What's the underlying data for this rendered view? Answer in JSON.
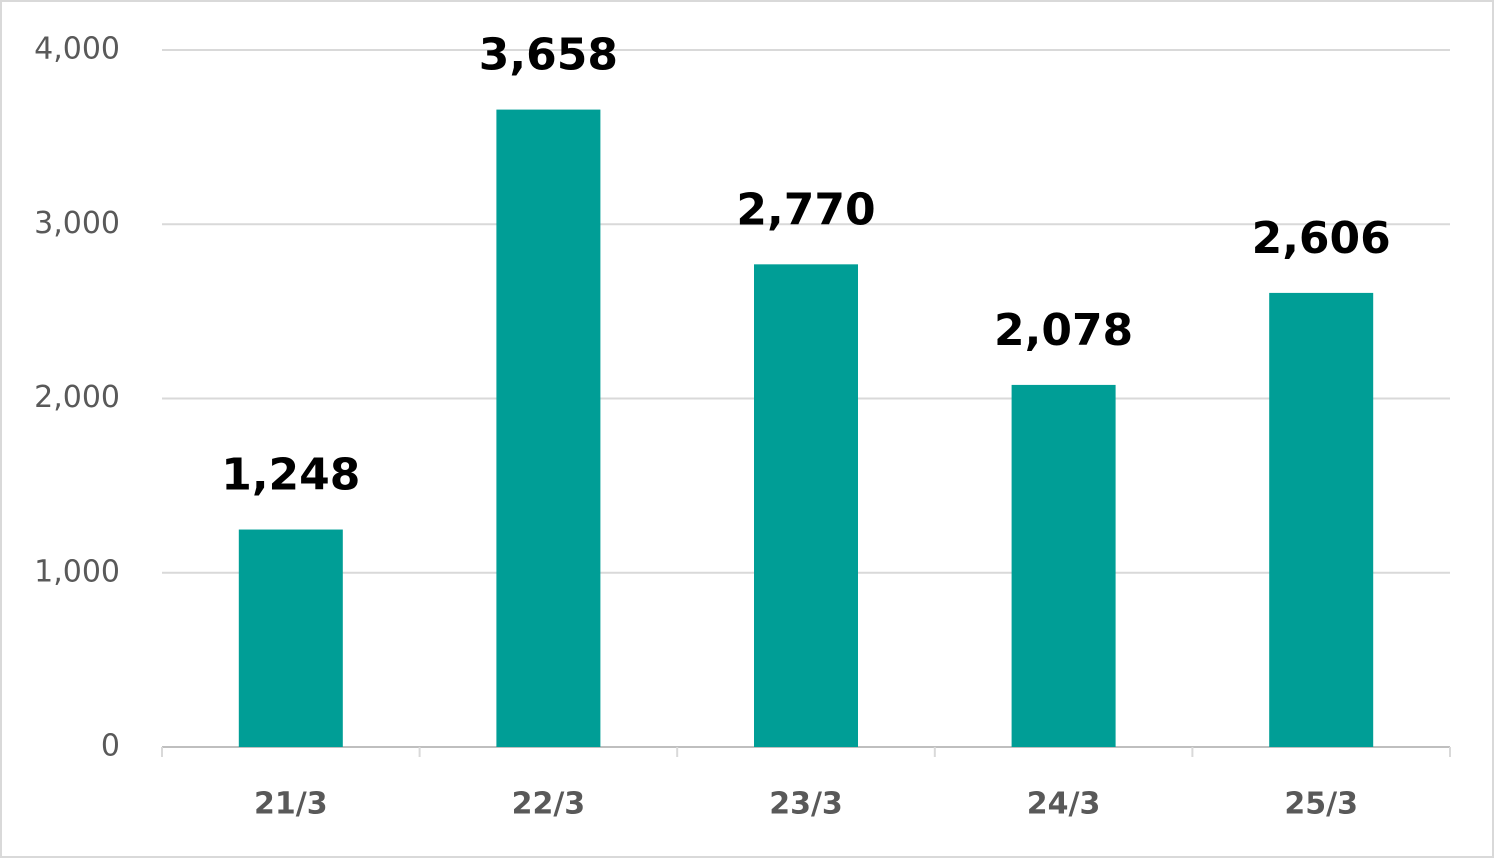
{
  "chart_data": {
    "type": "bar",
    "categories": [
      "21/3",
      "22/3",
      "23/3",
      "24/3",
      "25/3"
    ],
    "values": [
      1248,
      3658,
      2770,
      2078,
      2606
    ],
    "value_labels": [
      "1,248",
      "3,658",
      "2,770",
      "2,078",
      "2,606"
    ],
    "color": "#009e96",
    "ylim": [
      0,
      4000
    ],
    "yticks": [
      0,
      {
        "value": 1000,
        "label": "1,000"
      },
      {
        "value": 2000,
        "label": "2,000"
      },
      {
        "value": 3000,
        "label": "3,000"
      },
      {
        "value": 4000,
        "label": "4,000"
      }
    ],
    "grid": true
  }
}
